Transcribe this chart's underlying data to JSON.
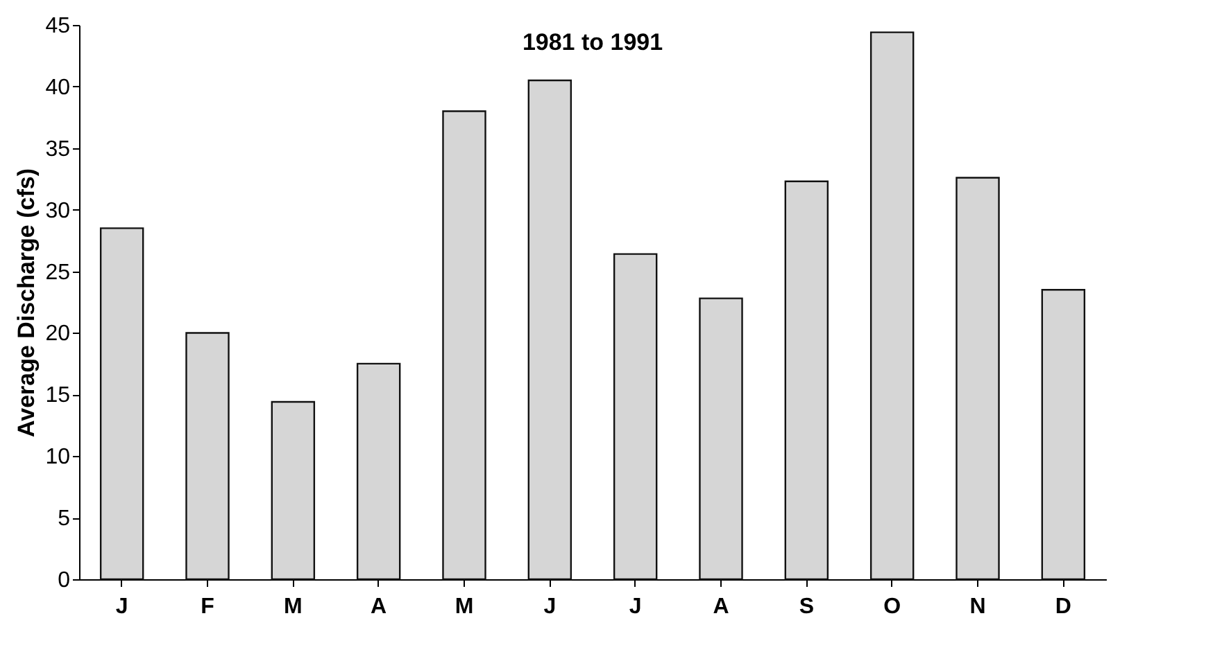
{
  "chart_data": {
    "type": "bar",
    "title": "1981 to 1991",
    "ylabel": "Average Discharge (cfs)",
    "categories": [
      "J",
      "F",
      "M",
      "A",
      "M",
      "J",
      "J",
      "A",
      "S",
      "O",
      "N",
      "D"
    ],
    "values": [
      28.5,
      20,
      14.4,
      17.5,
      38,
      40.5,
      26.4,
      22.8,
      32.3,
      44.4,
      32.6,
      23.5
    ],
    "color": "#d6d6d6",
    "ylim": [
      0,
      45
    ],
    "yticks": [
      0,
      5,
      10,
      15,
      20,
      25,
      30,
      35,
      40,
      45
    ],
    "grid": false
  }
}
